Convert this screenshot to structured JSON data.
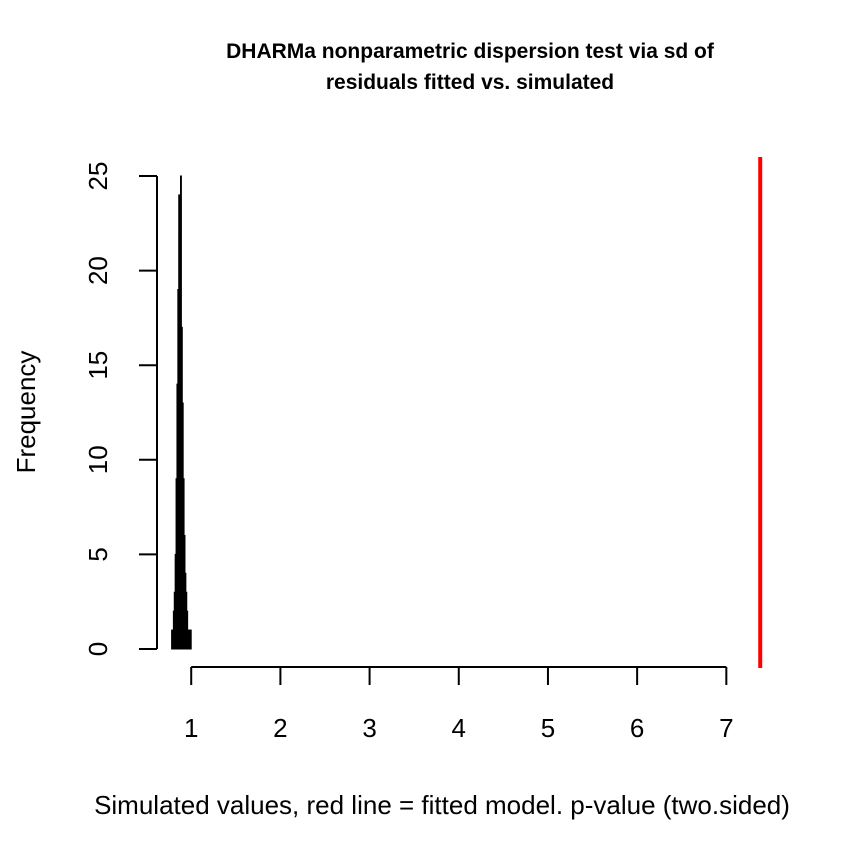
{
  "chart_data": {
    "type": "bar",
    "title_line1": "DHARMa nonparametric dispersion test via sd of",
    "title_line2": "residuals fitted vs. simulated",
    "xlabel": "Simulated values, red line = fitted model. p-value (two.sided)",
    "ylabel": "Frequency",
    "xlim": [
      0.65,
      7.4
    ],
    "ylim": [
      0,
      25
    ],
    "xticks": [
      1,
      2,
      3,
      4,
      5,
      6,
      7
    ],
    "yticks": [
      0,
      5,
      10,
      15,
      20,
      25
    ],
    "bin_width": 0.01,
    "bin_starts": [
      0.78,
      0.79,
      0.8,
      0.81,
      0.82,
      0.83,
      0.84,
      0.85,
      0.86,
      0.87,
      0.88,
      0.89,
      0.9,
      0.91,
      0.92,
      0.93,
      0.94,
      0.95,
      0.96,
      0.97,
      0.98,
      0.99,
      1.0
    ],
    "counts": [
      1,
      0,
      2,
      3,
      5,
      9,
      14,
      19,
      24,
      22,
      25,
      17,
      13,
      9,
      6,
      4,
      3,
      2,
      1,
      1,
      1,
      1,
      0
    ],
    "observed_value": 7.38,
    "observed_color": "#ff0000",
    "bar_color": "#000000"
  }
}
